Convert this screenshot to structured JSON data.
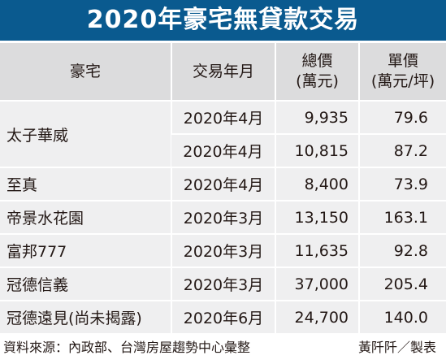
{
  "title": "2020年豪宅無貸款交易",
  "headers": {
    "name": "豪宅",
    "date": "交易年月",
    "total_line1": "總價",
    "total_line2": "(萬元)",
    "unit_line1": "單價",
    "unit_line2": "(萬元/坪)"
  },
  "rows": [
    {
      "name": "太子華威",
      "transactions": [
        {
          "date": "2020年4月",
          "total": "9,935",
          "unit_price": "79.6"
        },
        {
          "date": "2020年4月",
          "total": "10,815",
          "unit_price": "87.2"
        }
      ]
    },
    {
      "name": "至真",
      "transactions": [
        {
          "date": "2020年4月",
          "total": "8,400",
          "unit_price": "73.9"
        }
      ]
    },
    {
      "name": "帝景水花園",
      "transactions": [
        {
          "date": "2020年3月",
          "total": "13,150",
          "unit_price": "163.1"
        }
      ]
    },
    {
      "name": "富邦777",
      "transactions": [
        {
          "date": "2020年3月",
          "total": "11,635",
          "unit_price": "92.8"
        }
      ]
    },
    {
      "name": "冠德信義",
      "transactions": [
        {
          "date": "2020年3月",
          "total": "37,000",
          "unit_price": "205.4"
        }
      ]
    },
    {
      "name": "冠德遠見(尚未揭露)",
      "transactions": [
        {
          "date": "2020年6月",
          "total": "24,700",
          "unit_price": "140.0"
        }
      ]
    }
  ],
  "footer": {
    "source": "資料來源：內政部、台灣房屋趨勢中心彙整",
    "credit": "黃阡阡／製表"
  },
  "colors": {
    "title_bg": "#0a5a8f",
    "header_bg": "#dcdcdd",
    "row_bg": "#efeff0"
  }
}
